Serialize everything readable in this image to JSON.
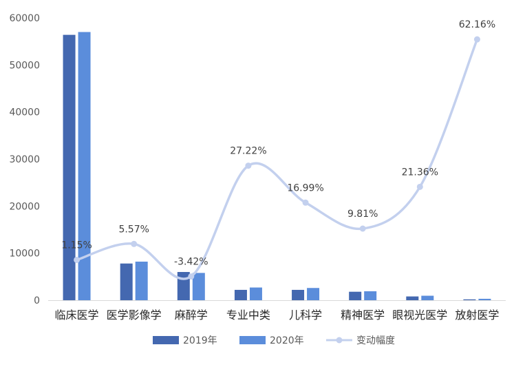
{
  "chart_data": {
    "type": "bar",
    "categories": [
      "临床医学",
      "医学影像学",
      "麻醉学",
      "专业中类",
      "儿科学",
      "精神医学",
      "眼视光医学",
      "放射医学"
    ],
    "series": [
      {
        "name": "2019年",
        "type": "bar",
        "color": "#4468b0",
        "values": [
          56400,
          7800,
          6000,
          2200,
          2200,
          1800,
          800,
          180
        ]
      },
      {
        "name": "2020年",
        "type": "bar",
        "color": "#5b8ddb",
        "values": [
          57000,
          8200,
          5800,
          2700,
          2600,
          1900,
          950,
          300
        ]
      },
      {
        "name": "变动幅度",
        "type": "line",
        "color": "#c3d0ee",
        "values": [
          1.15,
          5.57,
          -3.42,
          27.22,
          16.99,
          9.81,
          21.36,
          62.16
        ],
        "labels": [
          "1.15%",
          "5.57%",
          "-3.42%",
          "27.22%",
          "16.99%",
          "9.81%",
          "21.36%",
          "62.16%"
        ]
      }
    ],
    "yticks": [
      "0",
      "10000",
      "20000",
      "30000",
      "40000",
      "50000",
      "60000"
    ],
    "ylim": [
      0,
      60000
    ],
    "grid": false,
    "legend": "bottom"
  }
}
